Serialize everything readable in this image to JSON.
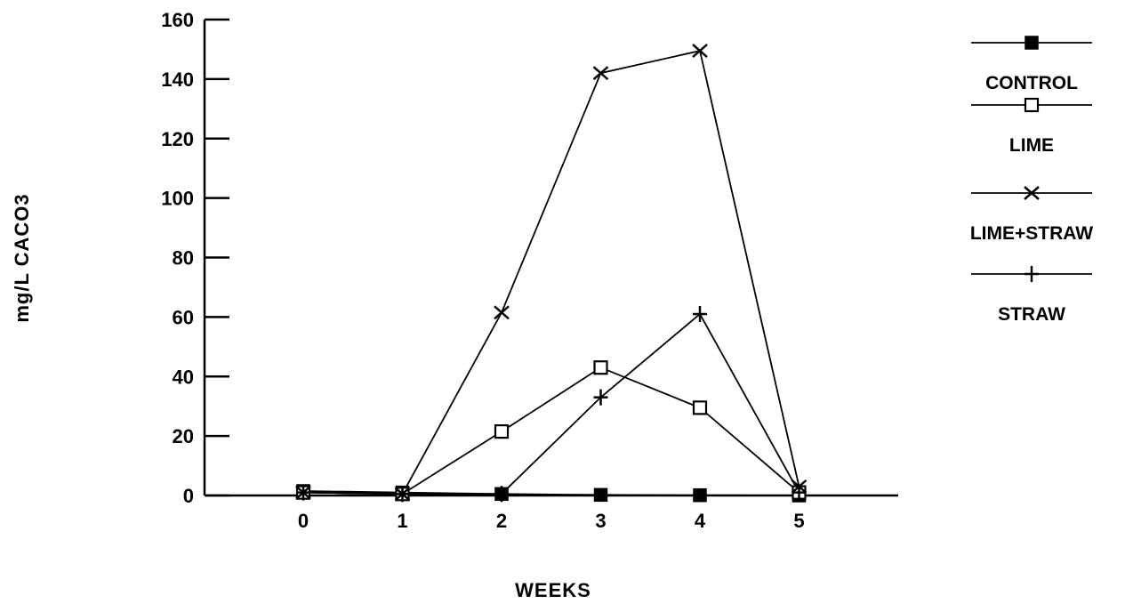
{
  "chart_data": {
    "type": "line",
    "title": "",
    "xlabel": "WEEKS",
    "ylabel": "mg/L CACO3",
    "x": [
      0,
      1,
      2,
      3,
      4,
      5
    ],
    "xlim": [
      -1,
      6
    ],
    "ylim": [
      0,
      160
    ],
    "x_ticks": [
      "0",
      "1",
      "2",
      "3",
      "4",
      "5"
    ],
    "y_ticks": [
      "0",
      "20",
      "40",
      "60",
      "80",
      "100",
      "120",
      "140",
      "160"
    ],
    "grid": false,
    "legend_position": "top-right",
    "series": [
      {
        "name": "CONTROL",
        "marker": "filled-square",
        "values": [
          1.5,
          1,
          0.5,
          0.2,
          0.1,
          0
        ]
      },
      {
        "name": "LIME",
        "marker": "open-square",
        "values": [
          1,
          0.5,
          21.5,
          43,
          29.5,
          1
        ]
      },
      {
        "name": "LIME+STRAW",
        "marker": "x",
        "values": [
          1,
          0.5,
          61.5,
          142,
          149.5,
          3
        ]
      },
      {
        "name": "STRAW",
        "marker": "plus",
        "values": [
          1,
          0.5,
          0.5,
          33,
          61,
          1
        ]
      }
    ]
  }
}
